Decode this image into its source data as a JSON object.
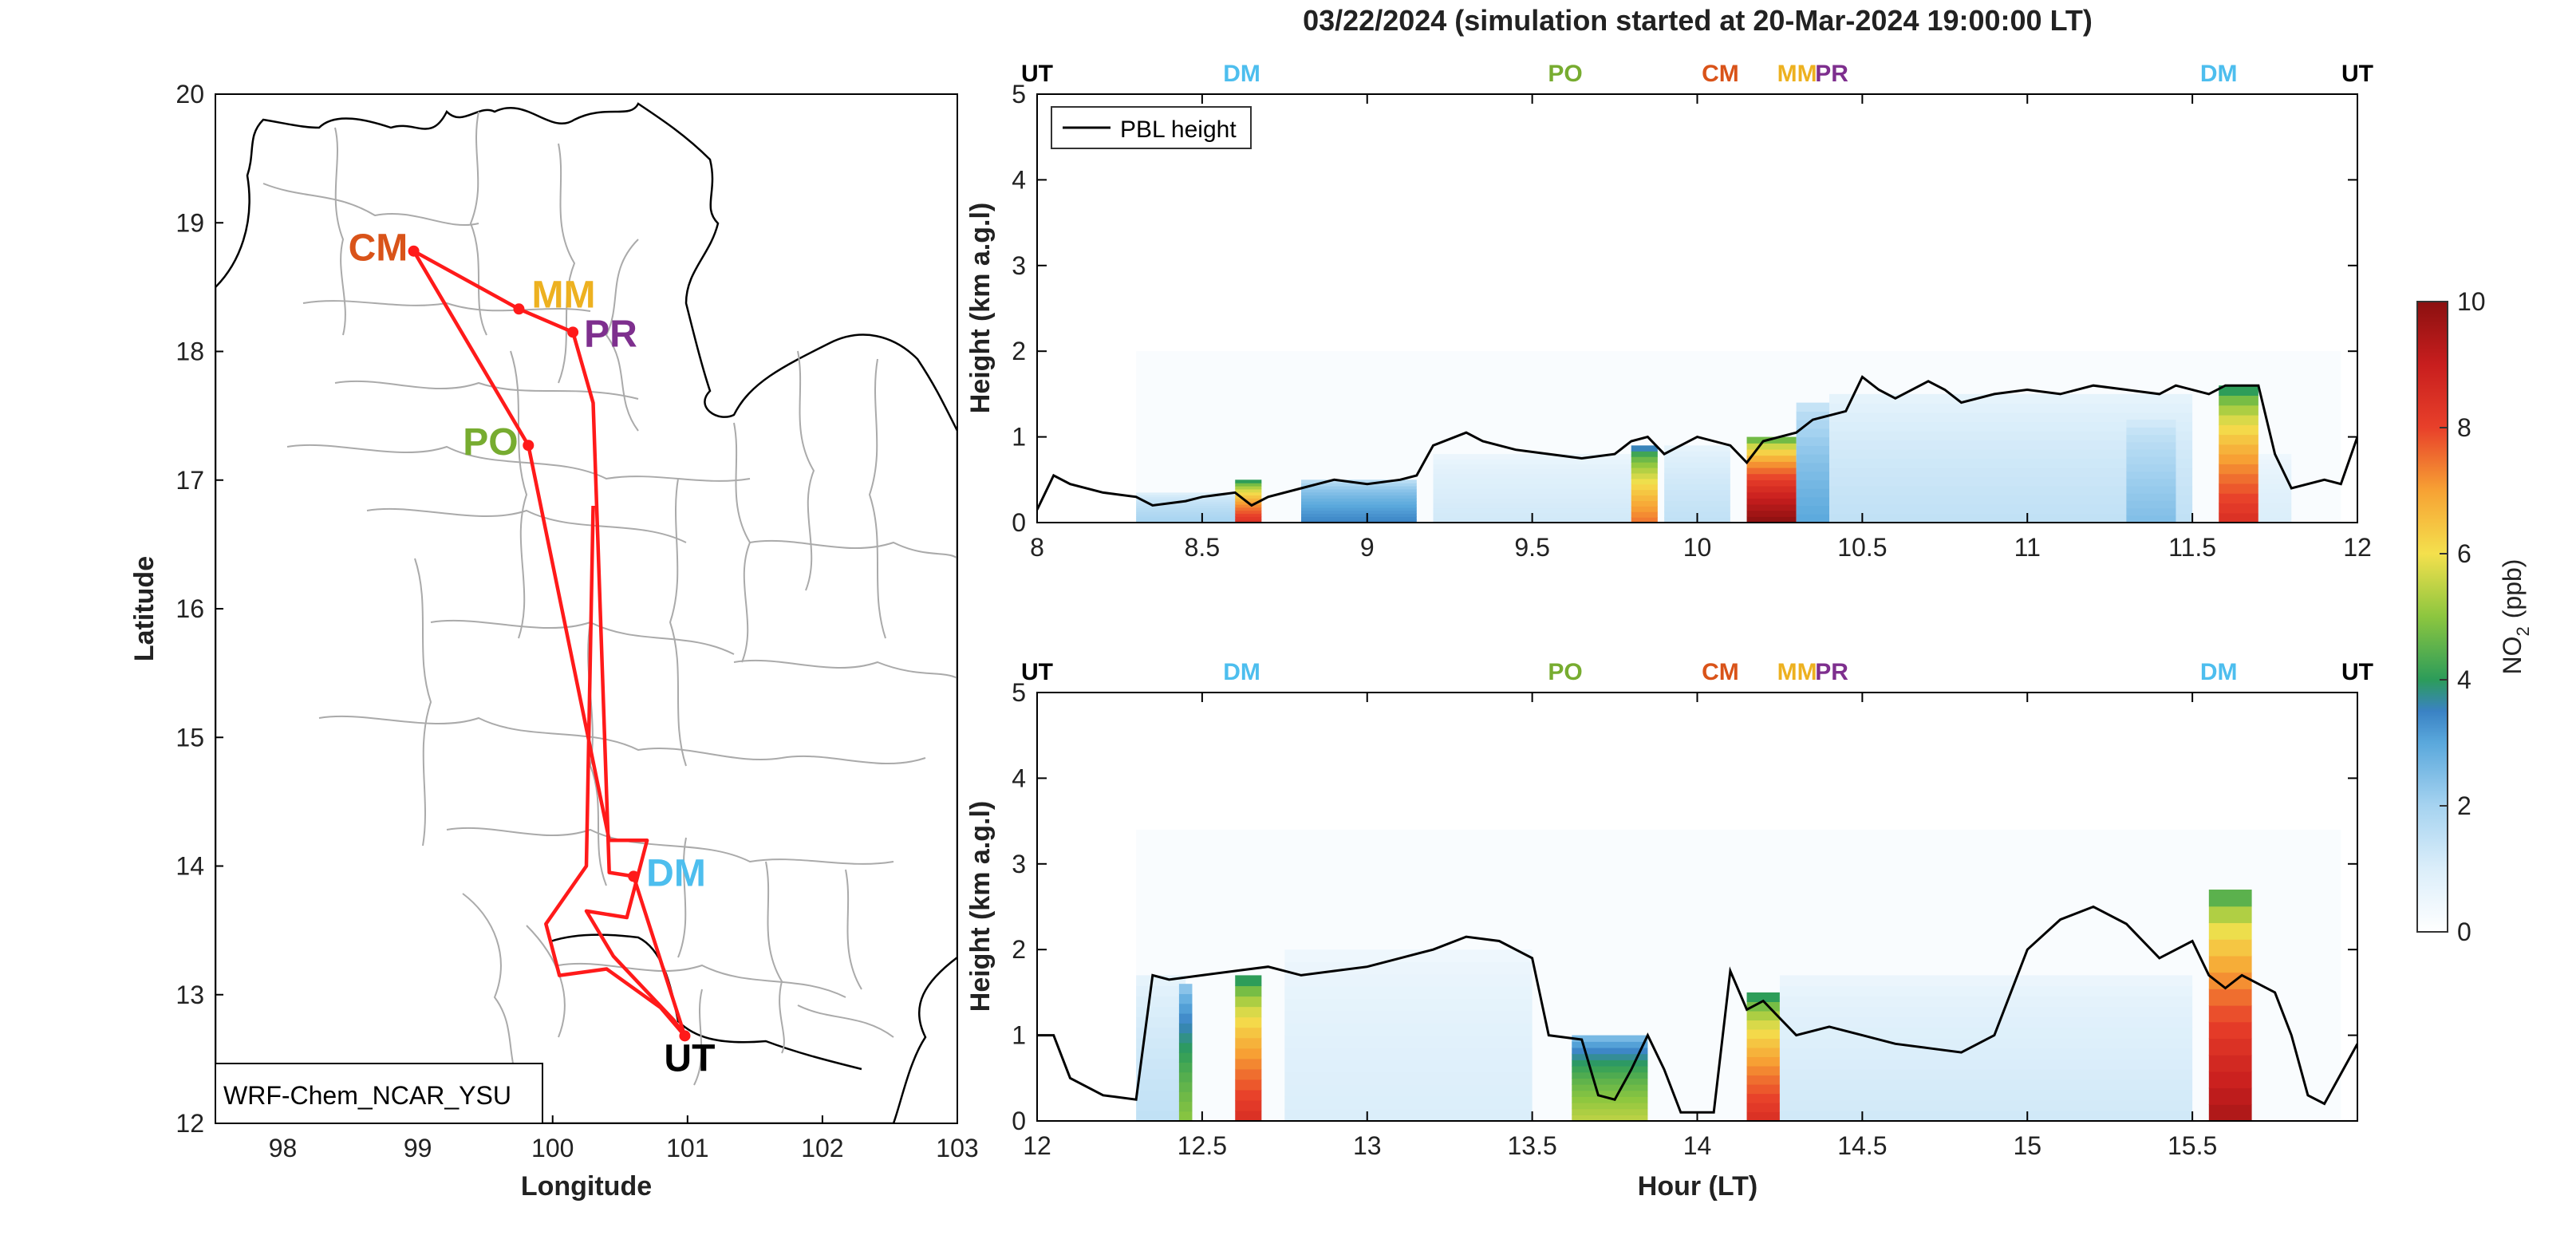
{
  "figure": {
    "title": "03/22/2024 (simulation started at 20-Mar-2024 19:00:00 LT)"
  },
  "map": {
    "xlabel": "Longitude",
    "ylabel": "Latitude",
    "xticks": [
      "98",
      "99",
      "100",
      "101",
      "102",
      "103"
    ],
    "yticks": [
      "12",
      "13",
      "14",
      "15",
      "16",
      "17",
      "18",
      "19",
      "20"
    ],
    "xlim": [
      97.5,
      103
    ],
    "ylim": [
      12,
      20
    ],
    "model_label": "WRF-Chem_NCAR_YSU",
    "sites": [
      {
        "code": "CM",
        "lon": 98.97,
        "lat": 18.78,
        "color": "#d95319"
      },
      {
        "code": "MM",
        "lon": 99.75,
        "lat": 18.33,
        "color": "#edb120"
      },
      {
        "code": "PR",
        "lon": 100.15,
        "lat": 18.15,
        "color": "#7e2f8e"
      },
      {
        "code": "PO",
        "lon": 99.82,
        "lat": 17.27,
        "color": "#77ac30"
      },
      {
        "code": "DM",
        "lon": 100.6,
        "lat": 13.92,
        "color": "#4dbeee"
      },
      {
        "code": "UT",
        "lon": 100.98,
        "lat": 12.68,
        "color": "#000000"
      }
    ],
    "flight_track": [
      [
        100.98,
        12.68
      ],
      [
        100.6,
        13.92
      ],
      [
        100.42,
        13.95
      ],
      [
        100.3,
        17.6
      ],
      [
        100.15,
        18.15
      ],
      [
        99.75,
        18.33
      ],
      [
        98.97,
        18.78
      ],
      [
        99.82,
        17.27
      ],
      [
        100.42,
        14.2
      ],
      [
        100.7,
        14.2
      ],
      [
        100.55,
        13.6
      ],
      [
        100.25,
        13.65
      ],
      [
        100.45,
        13.3
      ],
      [
        100.9,
        12.8
      ],
      [
        100.98,
        12.68
      ],
      [
        100.8,
        12.9
      ],
      [
        100.4,
        13.2
      ],
      [
        100.05,
        13.15
      ],
      [
        99.95,
        13.55
      ],
      [
        100.25,
        14.0
      ],
      [
        100.3,
        16.8
      ]
    ],
    "route_color": "#ff1a1a"
  },
  "chart_data": [
    {
      "type": "heatmap",
      "title": "",
      "xlabel": "",
      "ylabel": "Height (km a.g.l)",
      "xlim": [
        8,
        12
      ],
      "ylim": [
        0,
        5
      ],
      "xticks": [
        "8",
        "8.5",
        "9",
        "9.5",
        "10",
        "10.5",
        "11",
        "11.5",
        "12"
      ],
      "yticks": [
        "0",
        "1",
        "2",
        "3",
        "4",
        "5"
      ],
      "legend": {
        "entry": "PBL height",
        "placement": "top-left"
      },
      "site_markers": [
        {
          "code": "UT",
          "x": 8.0,
          "color": "#000000"
        },
        {
          "code": "DM",
          "x": 8.62,
          "color": "#4dbeee"
        },
        {
          "code": "PO",
          "x": 9.6,
          "color": "#77ac30"
        },
        {
          "code": "CM",
          "x": 10.07,
          "color": "#d95319"
        },
        {
          "code": "MM",
          "x": 10.3,
          "color": "#edb120"
        },
        {
          "code": "PR",
          "x": 10.42,
          "color": "#7e2f8e"
        },
        {
          "code": "DM",
          "x": 11.58,
          "color": "#4dbeee"
        },
        {
          "code": "UT",
          "x": 12.0,
          "color": "#000000"
        }
      ],
      "pbl_height": {
        "x": [
          8.0,
          8.05,
          8.1,
          8.2,
          8.3,
          8.35,
          8.45,
          8.5,
          8.6,
          8.65,
          8.7,
          8.8,
          8.9,
          9.0,
          9.1,
          9.15,
          9.2,
          9.3,
          9.35,
          9.45,
          9.55,
          9.65,
          9.75,
          9.8,
          9.85,
          9.9,
          9.95,
          10.0,
          10.1,
          10.15,
          10.2,
          10.25,
          10.3,
          10.35,
          10.45,
          10.5,
          10.55,
          10.6,
          10.7,
          10.75,
          10.8,
          10.9,
          11.0,
          11.1,
          11.2,
          11.3,
          11.4,
          11.45,
          11.55,
          11.6,
          11.7,
          11.75,
          11.8,
          11.9,
          11.95,
          12.0
        ],
        "y": [
          0.15,
          0.55,
          0.45,
          0.35,
          0.3,
          0.2,
          0.25,
          0.3,
          0.35,
          0.2,
          0.3,
          0.4,
          0.5,
          0.45,
          0.5,
          0.55,
          0.9,
          1.05,
          0.95,
          0.85,
          0.8,
          0.75,
          0.8,
          0.95,
          1.0,
          0.8,
          0.9,
          1.0,
          0.9,
          0.7,
          0.95,
          1.0,
          1.05,
          1.2,
          1.3,
          1.7,
          1.55,
          1.45,
          1.65,
          1.55,
          1.4,
          1.5,
          1.55,
          1.5,
          1.6,
          1.55,
          1.5,
          1.6,
          1.5,
          1.6,
          1.6,
          0.8,
          0.4,
          0.5,
          0.45,
          1.0
        ]
      },
      "no2_columns": [
        {
          "x0": 8.3,
          "x1": 8.65,
          "top": 0.35,
          "peak": 2.0
        },
        {
          "x0": 8.6,
          "x1": 8.68,
          "top": 0.5,
          "peak": 8.5
        },
        {
          "x0": 8.8,
          "x1": 9.15,
          "top": 0.5,
          "peak": 3.5
        },
        {
          "x0": 9.2,
          "x1": 9.8,
          "top": 0.8,
          "peak": 1.2
        },
        {
          "x0": 9.8,
          "x1": 9.88,
          "top": 0.9,
          "peak": 7.5
        },
        {
          "x0": 9.9,
          "x1": 10.1,
          "top": 0.9,
          "peak": 1.5
        },
        {
          "x0": 10.15,
          "x1": 10.3,
          "top": 1.0,
          "peak": 10.0
        },
        {
          "x0": 10.3,
          "x1": 10.4,
          "top": 1.4,
          "peak": 3.0
        },
        {
          "x0": 10.4,
          "x1": 11.5,
          "top": 1.5,
          "peak": 1.5
        },
        {
          "x0": 11.3,
          "x1": 11.45,
          "top": 1.2,
          "peak": 2.5
        },
        {
          "x0": 11.58,
          "x1": 11.7,
          "top": 1.6,
          "peak": 8.5
        },
        {
          "x0": 11.7,
          "x1": 11.8,
          "top": 0.8,
          "peak": 1.0
        }
      ]
    },
    {
      "type": "heatmap",
      "title": "",
      "xlabel": "Hour (LT)",
      "ylabel": "Height (km a.g.l)",
      "xlim": [
        12,
        16
      ],
      "ylim": [
        0,
        5
      ],
      "xticks": [
        "12",
        "12.5",
        "13",
        "13.5",
        "14",
        "14.5",
        "15",
        "15.5"
      ],
      "yticks": [
        "0",
        "1",
        "2",
        "3",
        "4",
        "5"
      ],
      "site_markers": [
        {
          "code": "UT",
          "x": 12.0,
          "color": "#000000"
        },
        {
          "code": "DM",
          "x": 12.62,
          "color": "#4dbeee"
        },
        {
          "code": "PO",
          "x": 13.6,
          "color": "#77ac30"
        },
        {
          "code": "CM",
          "x": 14.07,
          "color": "#d95319"
        },
        {
          "code": "MM",
          "x": 14.3,
          "color": "#edb120"
        },
        {
          "code": "PR",
          "x": 14.42,
          "color": "#7e2f8e"
        },
        {
          "code": "DM",
          "x": 15.58,
          "color": "#4dbeee"
        },
        {
          "code": "UT",
          "x": 16.0,
          "color": "#000000"
        }
      ],
      "pbl_height": {
        "x": [
          12.0,
          12.05,
          12.1,
          12.2,
          12.3,
          12.35,
          12.4,
          12.5,
          12.6,
          12.7,
          12.8,
          12.9,
          13.0,
          13.1,
          13.2,
          13.3,
          13.4,
          13.5,
          13.55,
          13.65,
          13.7,
          13.75,
          13.8,
          13.85,
          13.9,
          13.95,
          14.0,
          14.05,
          14.1,
          14.15,
          14.2,
          14.3,
          14.4,
          14.5,
          14.6,
          14.7,
          14.8,
          14.9,
          14.95,
          15.0,
          15.1,
          15.2,
          15.3,
          15.4,
          15.5,
          15.55,
          15.6,
          15.65,
          15.7,
          15.75,
          15.8,
          15.85,
          15.9,
          15.95,
          16.0
        ],
        "y": [
          1.0,
          1.0,
          0.5,
          0.3,
          0.25,
          1.7,
          1.65,
          1.7,
          1.75,
          1.8,
          1.7,
          1.75,
          1.8,
          1.9,
          2.0,
          2.15,
          2.1,
          1.9,
          1.0,
          0.95,
          0.3,
          0.25,
          0.6,
          1.0,
          0.6,
          0.1,
          0.1,
          0.1,
          1.75,
          1.3,
          1.4,
          1.0,
          1.1,
          1.0,
          0.9,
          0.85,
          0.8,
          1.0,
          1.5,
          2.0,
          2.35,
          2.5,
          2.3,
          1.9,
          2.1,
          1.7,
          1.55,
          1.7,
          1.6,
          1.5,
          1.0,
          0.3,
          0.2,
          0.55,
          0.9
        ]
      },
      "no2_columns": [
        {
          "x0": 12.3,
          "x1": 12.45,
          "top": 1.7,
          "peak": 1.5
        },
        {
          "x0": 12.43,
          "x1": 12.47,
          "top": 1.6,
          "peak": 5.0
        },
        {
          "x0": 12.6,
          "x1": 12.68,
          "top": 1.7,
          "peak": 8.5
        },
        {
          "x0": 12.75,
          "x1": 13.5,
          "top": 2.0,
          "peak": 1.0
        },
        {
          "x0": 13.62,
          "x1": 13.85,
          "top": 1.0,
          "peak": 5.5
        },
        {
          "x0": 14.15,
          "x1": 14.25,
          "top": 1.5,
          "peak": 8.5
        },
        {
          "x0": 14.25,
          "x1": 15.5,
          "top": 1.7,
          "peak": 1.2
        },
        {
          "x0": 15.55,
          "x1": 15.68,
          "top": 2.7,
          "peak": 9.5
        }
      ]
    }
  ],
  "colorbar": {
    "label": "NO",
    "label_subscript": "2",
    "label_unit": "(ppb)",
    "ticks": [
      "0",
      "2",
      "4",
      "6",
      "8",
      "10"
    ],
    "range": [
      0,
      10
    ]
  }
}
